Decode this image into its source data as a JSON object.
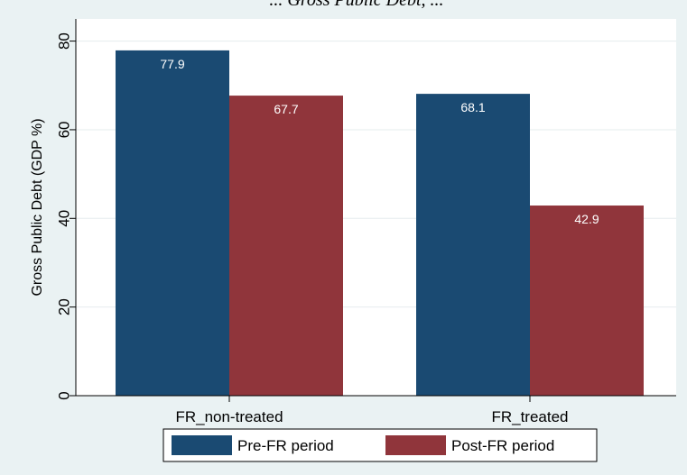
{
  "chart_data": {
    "type": "bar",
    "title": "... Gross Public Debt, ...",
    "categories": [
      "FR_non-treated",
      "FR_treated"
    ],
    "series": [
      {
        "name": "Pre-FR period",
        "color": "#1a4a72",
        "values": [
          77.9,
          68.1
        ],
        "labels": [
          "77.9",
          "68.1"
        ]
      },
      {
        "name": "Post-FR period",
        "color": "#90353b",
        "values": [
          67.7,
          42.9
        ],
        "labels": [
          "67.7",
          "42.9"
        ]
      }
    ],
    "ylabel": "Gross Public Debt (GDP %)",
    "xlabel": "",
    "ylim": [
      0,
      85
    ],
    "yticks": [
      0,
      20,
      40,
      60,
      80
    ],
    "grid": true,
    "legend_position": "bottom"
  }
}
